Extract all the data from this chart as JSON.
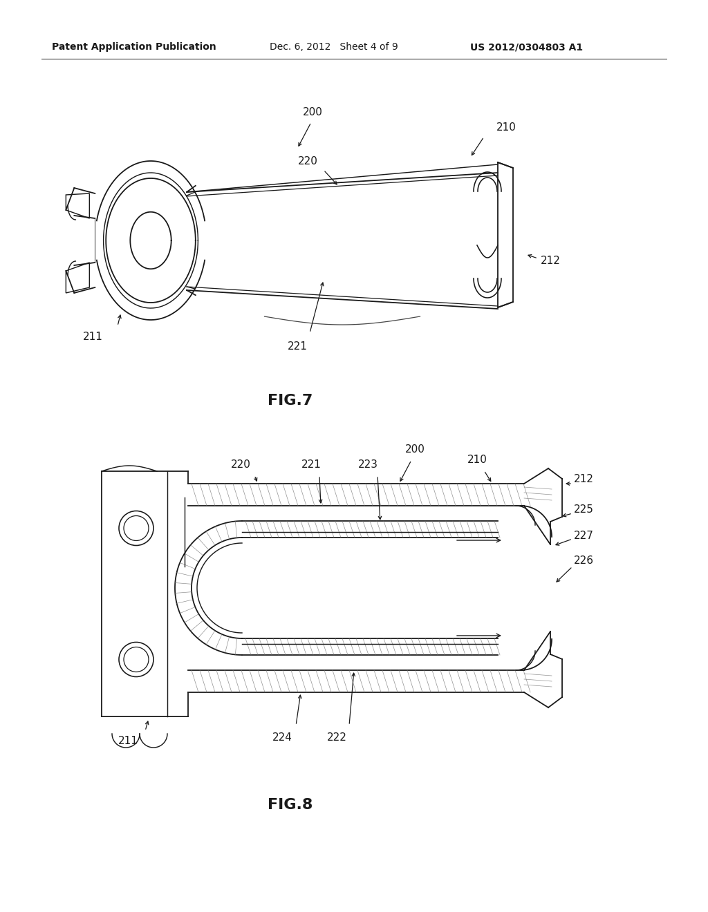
{
  "bg": "#ffffff",
  "lc": "#1a1a1a",
  "header_left": "Patent Application Publication",
  "header_center": "Dec. 6, 2012   Sheet 4 of 9",
  "header_right": "US 2012/0304803 A1",
  "fig7_caption": "FIG.7",
  "fig8_caption": "FIG.8",
  "label_fs": 11,
  "header_fs": 10,
  "caption_fs": 16,
  "hatch_color": "#777777",
  "lw": 1.3
}
